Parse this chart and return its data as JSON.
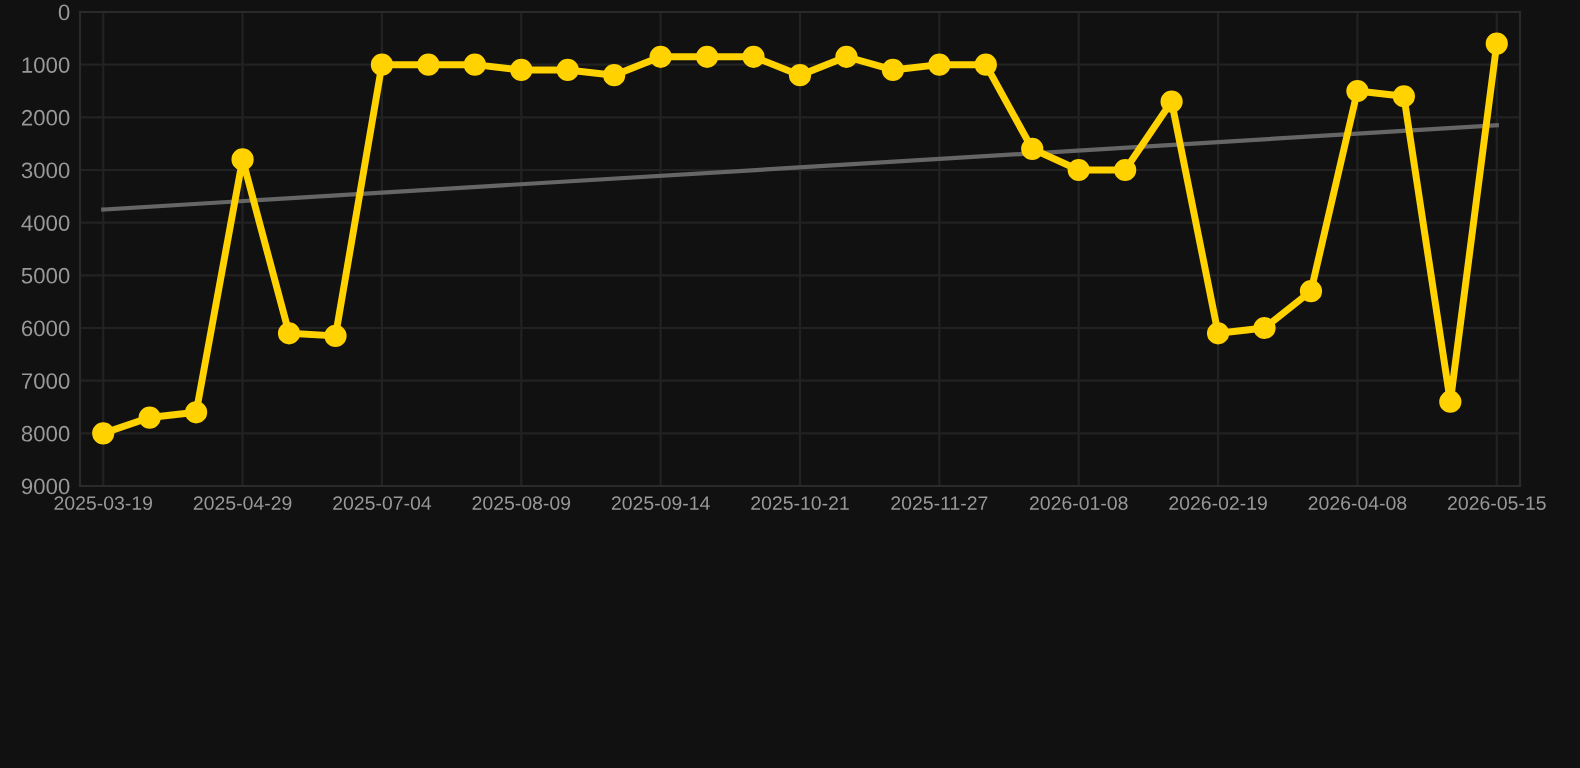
{
  "chart_data": {
    "type": "line",
    "categories": [
      "2025-03-19",
      null,
      null,
      "2025-04-29",
      null,
      null,
      "2025-07-04",
      null,
      null,
      "2025-08-09",
      null,
      null,
      "2025-09-14",
      null,
      null,
      "2025-10-21",
      null,
      null,
      "2025-11-27",
      null,
      null,
      "2026-01-08",
      null,
      null,
      "2026-02-19",
      null,
      null,
      "2026-04-08",
      null,
      null,
      "2026-05-15"
    ],
    "series": [
      {
        "color": "#666666",
        "marker": "none",
        "values": [
          3750,
          null,
          null,
          null,
          null,
          null,
          null,
          null,
          null,
          null,
          null,
          null,
          null,
          null,
          null,
          null,
          null,
          null,
          null,
          null,
          null,
          null,
          null,
          null,
          null,
          null,
          null,
          null,
          null,
          null,
          2150
        ]
      },
      {
        "color": "#ffd200",
        "marker": "circle",
        "values": [
          8000,
          7700,
          7600,
          2800,
          6100,
          6150,
          1000,
          1000,
          1000,
          1100,
          1100,
          1200,
          850,
          850,
          850,
          1200,
          850,
          1100,
          1000,
          1000,
          2600,
          3000,
          3000,
          1700,
          6100,
          6000,
          5300,
          1500,
          1600,
          7400,
          600
        ]
      }
    ],
    "ylim": [
      9000,
      0
    ],
    "yticks": [
      0,
      1000,
      2000,
      3000,
      4000,
      5000,
      6000,
      7000,
      8000,
      9000
    ],
    "grid": true,
    "line_style": "solid"
  }
}
